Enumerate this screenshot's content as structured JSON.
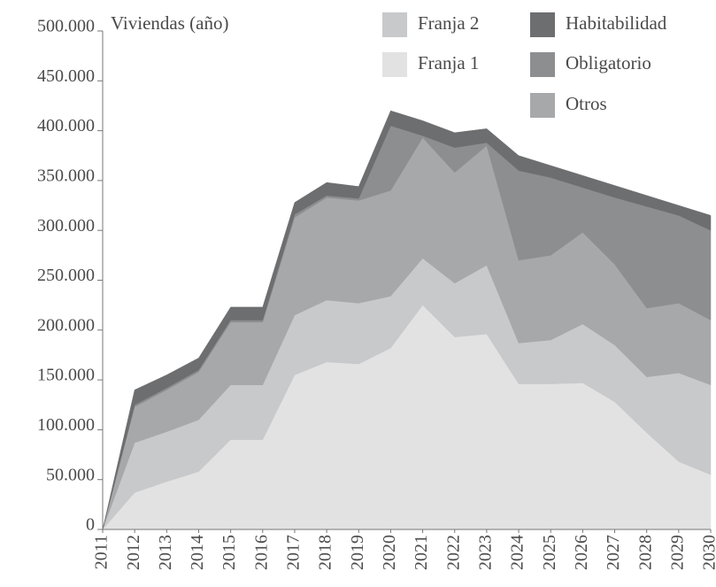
{
  "chart_data": {
    "type": "stacked_area",
    "y_label": "Viviendas (año)",
    "categories": [
      "2011",
      "2012",
      "2013",
      "2014",
      "2015",
      "2016",
      "2017",
      "2018",
      "2019",
      "2020",
      "2021",
      "2022",
      "2023",
      "2024",
      "2025",
      "2026",
      "2027",
      "2028",
      "2029",
      "2030"
    ],
    "series": [
      {
        "name": "Franja 1",
        "color": "#e2e2e3",
        "values": [
          0,
          37000,
          48000,
          58000,
          90000,
          90000,
          155000,
          168000,
          166000,
          182000,
          225000,
          193000,
          196000,
          146000,
          146000,
          147000,
          128000,
          97000,
          68000,
          55000
        ]
      },
      {
        "name": "Franja 2",
        "color": "#c8c9cb",
        "values": [
          0,
          50000,
          50000,
          52000,
          55000,
          55000,
          60000,
          62000,
          61000,
          52000,
          47000,
          54000,
          69000,
          41000,
          44000,
          59000,
          57000,
          56000,
          89000,
          90000
        ]
      },
      {
        "name": "Otros",
        "color": "#a7a8aa",
        "values": [
          0,
          36000,
          42000,
          48000,
          63000,
          63000,
          98000,
          103000,
          103000,
          106000,
          121000,
          111000,
          120000,
          83000,
          85000,
          92000,
          81000,
          69000,
          70000,
          65000
        ]
      },
      {
        "name": "Obligatorio",
        "color": "#8d8e90",
        "values": [
          0,
          2000,
          2000,
          2000,
          2000,
          2000,
          3000,
          2000,
          2000,
          65000,
          2000,
          25000,
          3000,
          90000,
          78000,
          45000,
          67000,
          102000,
          88000,
          90000
        ]
      },
      {
        "name": "Habitabilidad",
        "color": "#6d6e70",
        "values": [
          0,
          15000,
          13000,
          12000,
          13000,
          13000,
          12000,
          13000,
          12000,
          15000,
          15000,
          15000,
          14000,
          15000,
          12000,
          12000,
          12000,
          11000,
          10000,
          15000
        ]
      }
    ],
    "ylim": [
      0,
      500000
    ],
    "yticks": [
      0,
      {
        "value": 50000,
        "label": "50.000"
      },
      {
        "value": 100000,
        "label": "100.000"
      },
      {
        "value": 150000,
        "label": "150.000"
      },
      {
        "value": 200000,
        "label": "200.000"
      },
      {
        "value": 250000,
        "label": "250.000"
      },
      {
        "value": 300000,
        "label": "300.000"
      },
      {
        "value": 350000,
        "label": "350.000"
      },
      {
        "value": 400000,
        "label": "400.000"
      },
      {
        "value": 450000,
        "label": "450.000"
      },
      {
        "value": 500000,
        "label": "500.000"
      }
    ]
  }
}
